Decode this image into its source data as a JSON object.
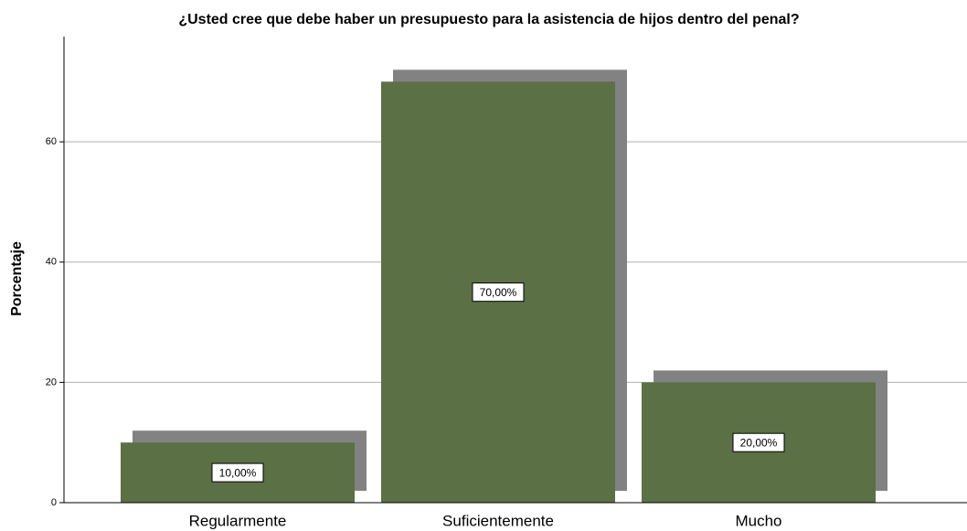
{
  "chart_data": {
    "type": "bar",
    "title": "¿Usted cree que debe haber un presupuesto para la asistencia de hijos dentro del penal?",
    "y_label": "Porcentaje",
    "categories": [
      "Regularmente",
      "Suficientemente",
      "Mucho"
    ],
    "values": [
      10,
      70,
      20
    ],
    "value_labels": [
      "10,00%",
      "70,00%",
      "20,00%"
    ],
    "color": "#5b7045",
    "shadow_color": "#828282",
    "ylim": [
      0,
      77.5
    ],
    "yticks": [
      0,
      20,
      40,
      60
    ],
    "grid": true
  }
}
